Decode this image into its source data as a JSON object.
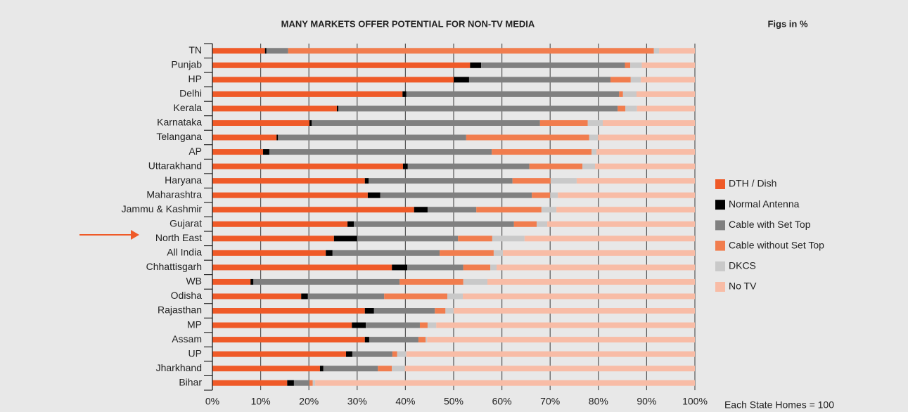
{
  "chart_data": {
    "type": "stacked-bar-horizontal",
    "title": "MANY MARKETS OFFER POTENTIAL FOR NON-TV MEDIA",
    "subtitle": "Figs in %",
    "annotation": "Each State Homes = 100",
    "categories": [
      "TN",
      "Punjab",
      "HP",
      "Delhi",
      "Kerala",
      "Karnataka",
      "Telangana",
      "AP",
      "Uttarakhand",
      "Haryana",
      "Maharashtra",
      "Jammu & Kashmir",
      "Gujarat",
      "North East",
      "All India",
      "Chhattisgarh",
      "WB",
      "Odisha",
      "Rajasthan",
      "MP",
      "Assam",
      "UP",
      "Jharkhand",
      "Bihar"
    ],
    "series": [
      {
        "name": "DTH / Dish",
        "color": "#ef5a28",
        "values": [
          10.9,
          53.4,
          50,
          39.4,
          25.8,
          20.1,
          13.3,
          10.5,
          39.5,
          31.6,
          32.2,
          41.8,
          28,
          25.2,
          23.5,
          37.2,
          7.9,
          18.4,
          31.6,
          28.9,
          31.6,
          27.7,
          22.3,
          15.5
        ]
      },
      {
        "name": "Normal Antenna",
        "color": "#000000",
        "values": [
          0.3,
          2.3,
          3.2,
          0.8,
          0.3,
          0.5,
          0.3,
          1.3,
          1,
          0.8,
          2.6,
          2.8,
          1.3,
          4.8,
          1.4,
          3.2,
          0.6,
          1.4,
          1.9,
          2.9,
          0.9,
          1.3,
          0.7,
          1.4
        ]
      },
      {
        "name": "Cable with Set Top",
        "color": "#808080",
        "values": [
          4.5,
          29.8,
          29.3,
          44.1,
          57.9,
          47.3,
          39,
          46.1,
          25.2,
          29.8,
          31.4,
          10.1,
          33.2,
          20.9,
          22.2,
          11.6,
          30.3,
          15.8,
          12.6,
          11.2,
          10.2,
          8.3,
          11.3,
          3.2
        ]
      },
      {
        "name": "Cable without Set Top",
        "color": "#f17d4e",
        "values": [
          75.8,
          1.1,
          4.2,
          0.8,
          1.6,
          9.9,
          25.5,
          20.7,
          11,
          7.9,
          3.8,
          13.5,
          4.7,
          7.1,
          11.2,
          5.6,
          13.2,
          13.1,
          2.2,
          1.6,
          1.5,
          1,
          2.9,
          0.7
        ]
      },
      {
        "name": "DKCS",
        "color": "#c9c9c9",
        "values": [
          1.1,
          2.4,
          2.1,
          2.8,
          2.4,
          3.1,
          1.8,
          1,
          2.6,
          5.4,
          1.6,
          3.1,
          2.2,
          6.7,
          1.9,
          1.3,
          5,
          3.2,
          1.7,
          1.8,
          0.3,
          1.9,
          2.7,
          0.5
        ]
      },
      {
        "name": "No TV",
        "color": "#f8bca6",
        "values": [
          7.4,
          11,
          11.2,
          12.1,
          12,
          19.1,
          20.1,
          20.4,
          20.7,
          24.5,
          28.4,
          28.7,
          30.6,
          35.3,
          39.8,
          41.1,
          43,
          48.1,
          50,
          53.6,
          55.5,
          59.8,
          60.1,
          78.7
        ]
      }
    ],
    "xlim": [
      0,
      100
    ],
    "xticks": [
      {
        "value": 0,
        "label": "0%"
      },
      {
        "value": 10,
        "label": "10%"
      },
      {
        "value": 20,
        "label": "20%"
      },
      {
        "value": 30,
        "label": "30%"
      },
      {
        "value": 40,
        "label": "40%"
      },
      {
        "value": 50,
        "label": "50%"
      },
      {
        "value": 60,
        "label": "60%"
      },
      {
        "value": 70,
        "label": "70%"
      },
      {
        "value": 80,
        "label": "80%"
      },
      {
        "value": 90,
        "label": "90%"
      },
      {
        "value": 100,
        "label": "100%"
      }
    ],
    "grid": true,
    "legend": "right"
  }
}
